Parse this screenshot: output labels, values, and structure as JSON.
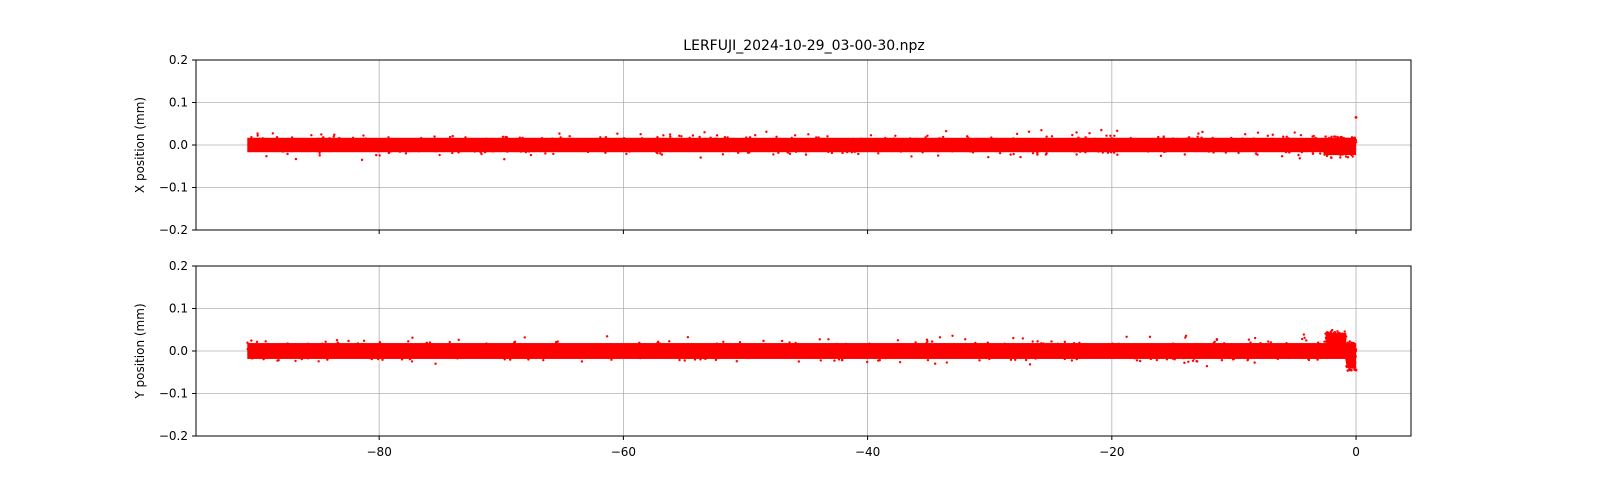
{
  "figure": {
    "title": "LERFUJI_2024-10-29_03-00-30.npz"
  },
  "chart_data": [
    {
      "type": "scatter",
      "xlabel": "",
      "ylabel": "X position (mm)",
      "xlim": [
        -95,
        4.5
      ],
      "ylim": [
        -0.2,
        0.2
      ],
      "xticks": [
        -80,
        -60,
        -40,
        -20,
        0
      ],
      "yticks": [
        -0.2,
        -0.1,
        0.0,
        0.1,
        0.2
      ],
      "show_xticklabels": false,
      "grid": true,
      "marker_color": "#ff0000",
      "x_range": [
        -90.8,
        0
      ],
      "band": {
        "center": 0.0,
        "half_width": 0.02,
        "outlier_max": 0.035
      },
      "features": [
        {
          "x": -2.5,
          "x_end": 0,
          "center": -0.005,
          "half_width": 0.025
        },
        {
          "x": 0,
          "y": 0.065
        }
      ]
    },
    {
      "type": "scatter",
      "xlabel": "",
      "ylabel": "Y position (mm)",
      "xlim": [
        -95,
        4.5
      ],
      "ylim": [
        -0.2,
        0.2
      ],
      "xticks": [
        -80,
        -60,
        -40,
        -20,
        0
      ],
      "yticks": [
        -0.2,
        -0.1,
        0.0,
        0.1,
        0.2
      ],
      "show_xticklabels": true,
      "grid": true,
      "marker_color": "#ff0000",
      "x_range": [
        -90.8,
        0
      ],
      "band": {
        "center": 0.0,
        "half_width": 0.022,
        "outlier_max": 0.04
      },
      "features": [
        {
          "x": -2.5,
          "x_end": -0.8,
          "center": 0.02,
          "half_width": 0.03
        },
        {
          "x": -0.8,
          "x_end": 0,
          "center": -0.012,
          "half_width": 0.035
        },
        {
          "x": 0,
          "y": -0.045
        }
      ]
    }
  ]
}
